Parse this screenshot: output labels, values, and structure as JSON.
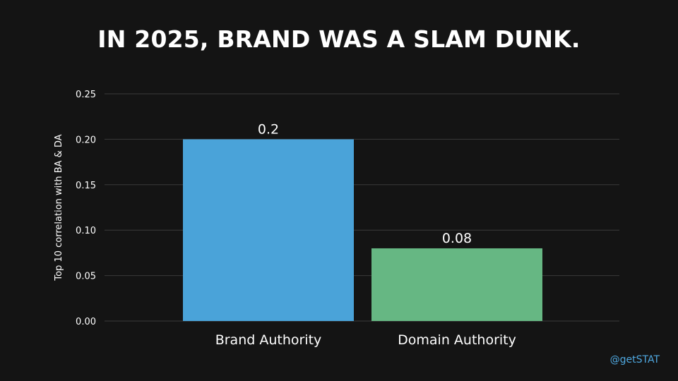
{
  "title": "IN 2025, BRAND WAS A SLAM DUNK.",
  "watermark": "@getSTAT",
  "colors": {
    "background": "#141414",
    "grid": "#3a3a3a",
    "text": "#ffffff",
    "watermark": "#4fa8e0"
  },
  "chart_data": {
    "type": "bar",
    "title": "IN 2025, BRAND WAS A SLAM DUNK.",
    "xlabel": "",
    "ylabel": "Top 10 correlation with BA & DA",
    "categories": [
      "Brand Authority",
      "Domain Authority"
    ],
    "values": [
      0.2,
      0.08
    ],
    "value_labels": [
      "0.2",
      "0.08"
    ],
    "bar_colors": [
      "#4aa3d9",
      "#66b783"
    ],
    "ylim": [
      0,
      0.25
    ],
    "yticks": [
      0.0,
      0.05,
      0.1,
      0.15,
      0.2,
      0.25
    ],
    "ytick_labels": [
      "0.00",
      "0.05",
      "0.10",
      "0.15",
      "0.20",
      "0.25"
    ],
    "grid": true,
    "legend": "none"
  }
}
